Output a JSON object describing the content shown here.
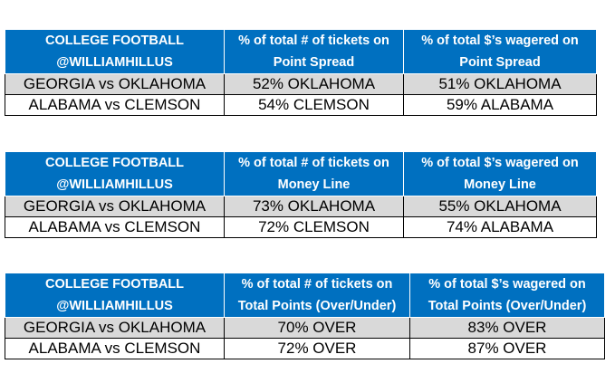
{
  "tables": [
    {
      "headers": [
        [
          "COLLEGE FOOTBALL",
          "@WILLIAMHILLUS"
        ],
        [
          "% of total # of tickets on",
          "Point Spread"
        ],
        [
          "% of total $’s wagered on",
          "Point Spread"
        ]
      ],
      "rows": [
        [
          "GEORGIA vs OKLAHOMA",
          "52% OKLAHOMA",
          "51% OKLAHOMA"
        ],
        [
          "ALABAMA vs CLEMSON",
          "54% CLEMSON",
          "59% ALABAMA"
        ]
      ]
    },
    {
      "headers": [
        [
          "COLLEGE FOOTBALL",
          "@WILLIAMHILLUS"
        ],
        [
          "% of total # of tickets on",
          "Money Line"
        ],
        [
          "% of total $’s wagered on",
          "Money Line"
        ]
      ],
      "rows": [
        [
          "GEORGIA vs OKLAHOMA",
          "73% OKLAHOMA",
          "55% OKLAHOMA"
        ],
        [
          "ALABAMA vs CLEMSON",
          "72% CLEMSON",
          "74% ALABAMA"
        ]
      ]
    },
    {
      "headers": [
        [
          "COLLEGE FOOTBALL",
          "@WILLIAMHILLUS"
        ],
        [
          "% of total # of tickets on",
          "Total Points (Over/Under)"
        ],
        [
          "% of total $’s wagered on",
          "Total Points (Over/Under)"
        ]
      ],
      "rows": [
        [
          "GEORGIA vs OKLAHOMA",
          "70% OVER",
          "83% OVER"
        ],
        [
          "ALABAMA vs CLEMSON",
          "72% OVER",
          "87% OVER"
        ]
      ]
    }
  ],
  "colors": {
    "header_bg": "#0070c0",
    "header_text": "#ffffff",
    "shaded_row": "#d9d9d9"
  }
}
